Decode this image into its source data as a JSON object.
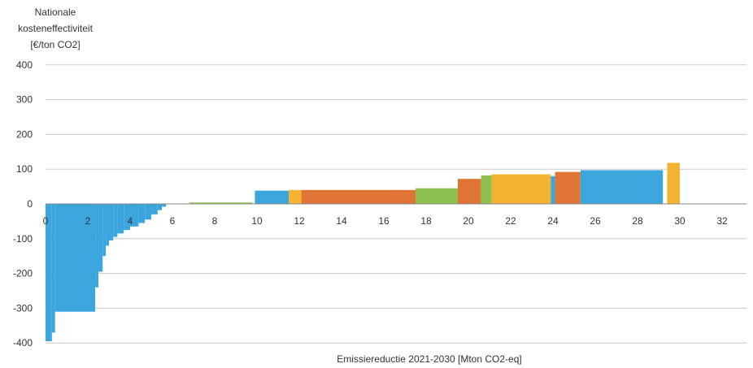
{
  "chart_data": {
    "type": "bar",
    "subtype": "marginal-abatement-cost-curve",
    "ylabel_lines": [
      "Nationale",
      "kosteneffectiviteit",
      "[€/ton CO2]"
    ],
    "xlabel": "Emissiereductie 2021-2030 [Mton CO2-eq]",
    "xlim": [
      0,
      32
    ],
    "ylim": [
      -400,
      400
    ],
    "x_ticks": [
      "0",
      "2",
      "4",
      "6",
      "8",
      "10",
      "12",
      "14",
      "16",
      "18",
      "20",
      "22",
      "24",
      "26",
      "28",
      "30",
      "32"
    ],
    "y_ticks": [
      "400",
      "300",
      "200",
      "100",
      "0",
      "-100",
      "-200",
      "-300",
      "-400"
    ],
    "grid": true,
    "colors": {
      "blue": "#3aa6dd",
      "orange": "#e07434",
      "green": "#8cc152",
      "yellow": "#f4b330",
      "grid": "#c8c8c8"
    },
    "segments": [
      {
        "x0": 0.0,
        "x1": 0.3,
        "y": -395,
        "color": "blue"
      },
      {
        "x0": 0.3,
        "x1": 0.45,
        "y": -370,
        "color": "blue"
      },
      {
        "x0": 0.45,
        "x1": 2.35,
        "y": -310,
        "color": "blue"
      },
      {
        "x0": 2.35,
        "x1": 2.5,
        "y": -240,
        "color": "blue"
      },
      {
        "x0": 2.5,
        "x1": 2.7,
        "y": -195,
        "color": "blue"
      },
      {
        "x0": 2.7,
        "x1": 2.85,
        "y": -150,
        "color": "blue"
      },
      {
        "x0": 2.85,
        "x1": 3.0,
        "y": -120,
        "color": "blue"
      },
      {
        "x0": 3.0,
        "x1": 3.2,
        "y": -105,
        "color": "blue"
      },
      {
        "x0": 3.2,
        "x1": 3.4,
        "y": -95,
        "color": "blue"
      },
      {
        "x0": 3.4,
        "x1": 3.7,
        "y": -85,
        "color": "blue"
      },
      {
        "x0": 3.7,
        "x1": 4.0,
        "y": -75,
        "color": "blue"
      },
      {
        "x0": 4.0,
        "x1": 4.4,
        "y": -65,
        "color": "blue"
      },
      {
        "x0": 4.4,
        "x1": 4.7,
        "y": -55,
        "color": "blue"
      },
      {
        "x0": 4.7,
        "x1": 5.0,
        "y": -45,
        "color": "blue"
      },
      {
        "x0": 5.0,
        "x1": 5.3,
        "y": -30,
        "color": "blue"
      },
      {
        "x0": 5.3,
        "x1": 5.5,
        "y": -18,
        "color": "blue"
      },
      {
        "x0": 5.5,
        "x1": 5.7,
        "y": -8,
        "color": "blue"
      },
      {
        "x0": 6.8,
        "x1": 9.8,
        "y": 4,
        "color": "green"
      },
      {
        "x0": 9.9,
        "x1": 11.5,
        "y": 38,
        "color": "blue"
      },
      {
        "x0": 11.5,
        "x1": 12.1,
        "y": 40,
        "color": "yellow"
      },
      {
        "x0": 12.1,
        "x1": 17.5,
        "y": 40,
        "color": "orange"
      },
      {
        "x0": 17.5,
        "x1": 19.5,
        "y": 45,
        "color": "green"
      },
      {
        "x0": 19.5,
        "x1": 20.6,
        "y": 72,
        "color": "orange"
      },
      {
        "x0": 20.6,
        "x1": 21.1,
        "y": 82,
        "color": "green"
      },
      {
        "x0": 21.1,
        "x1": 23.9,
        "y": 85,
        "color": "yellow"
      },
      {
        "x0": 23.9,
        "x1": 24.1,
        "y": 80,
        "color": "blue"
      },
      {
        "x0": 24.1,
        "x1": 25.3,
        "y": 92,
        "color": "orange"
      },
      {
        "x0": 25.3,
        "x1": 29.2,
        "y": 97,
        "color": "blue"
      },
      {
        "x0": 29.4,
        "x1": 30.0,
        "y": 118,
        "color": "yellow"
      }
    ]
  }
}
